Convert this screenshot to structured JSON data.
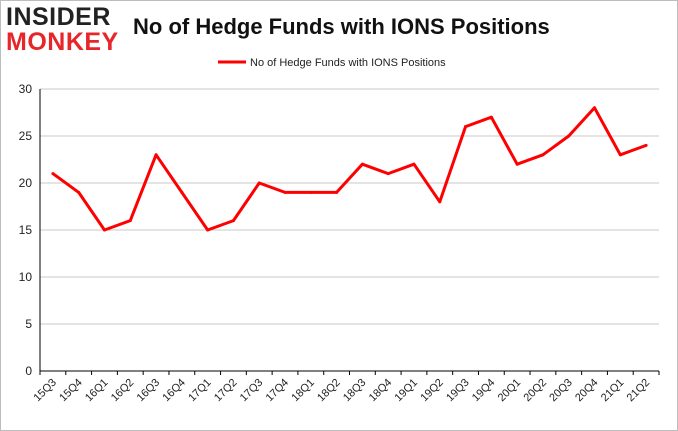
{
  "logo": {
    "line1": "INSIDER",
    "line2": "MONKEY"
  },
  "colors": {
    "series": "#ff0000",
    "grid": "#c8c8c8",
    "axis": "#000000",
    "logo_red": "#e8262a"
  },
  "chart_data": {
    "type": "line",
    "title": "No of Hedge Funds with IONS Positions",
    "xlabel": "",
    "ylabel": "",
    "ylim": [
      0,
      30
    ],
    "yticks": [
      0,
      5,
      10,
      15,
      20,
      25,
      30
    ],
    "grid": true,
    "legend_position": "top-center",
    "categories": [
      "15Q3",
      "15Q4",
      "16Q1",
      "16Q2",
      "16Q3",
      "16Q4",
      "17Q1",
      "17Q2",
      "17Q3",
      "17Q4",
      "18Q1",
      "18Q2",
      "18Q3",
      "18Q4",
      "19Q1",
      "19Q2",
      "19Q3",
      "19Q4",
      "20Q1",
      "20Q2",
      "20Q3",
      "20Q4",
      "21Q1",
      "21Q2"
    ],
    "series": [
      {
        "name": "No of Hedge Funds with IONS Positions",
        "values": [
          21,
          19,
          15,
          16,
          23,
          19,
          15,
          16,
          20,
          19,
          19,
          19,
          22,
          21,
          22,
          18,
          26,
          27,
          22,
          23,
          25,
          28,
          23,
          24
        ]
      }
    ]
  }
}
